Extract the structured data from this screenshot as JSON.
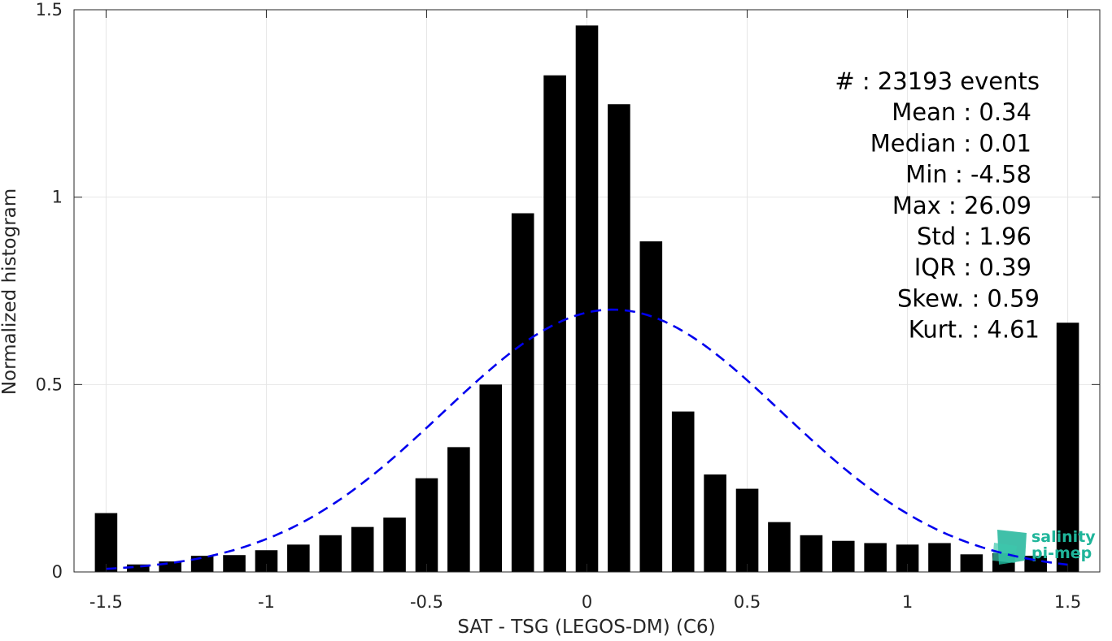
{
  "chart_data": {
    "type": "bar",
    "xlabel": "SAT - TSG (LEGOS-DM) (C6)",
    "ylabel": "Normalized histogram",
    "xlim": [
      -1.6,
      1.6
    ],
    "ylim": [
      0,
      1.5
    ],
    "xticks": [
      "-1.5",
      "-1",
      "-0.5",
      "0",
      "0.5",
      "1",
      "1.5"
    ],
    "xtick_values": [
      -1.5,
      -1,
      -0.5,
      0,
      0.5,
      1,
      1.5
    ],
    "yticks": [
      "0",
      "0.5",
      "1",
      "1.5"
    ],
    "ytick_values": [
      0,
      0.5,
      1,
      1.5
    ],
    "grid": true,
    "bar_color": "#000000",
    "bars": {
      "x": [
        -1.5,
        -1.4,
        -1.3,
        -1.2,
        -1.1,
        -1.0,
        -0.9,
        -0.8,
        -0.7,
        -0.6,
        -0.5,
        -0.4,
        -0.3,
        -0.2,
        -0.1,
        0.0,
        0.1,
        0.2,
        0.3,
        0.4,
        0.5,
        0.6,
        0.7,
        0.8,
        0.9,
        1.0,
        1.1,
        1.2,
        1.3,
        1.4,
        1.5
      ],
      "values": [
        0.157,
        0.02,
        0.028,
        0.043,
        0.045,
        0.058,
        0.073,
        0.098,
        0.12,
        0.145,
        0.25,
        0.333,
        0.5,
        0.957,
        1.325,
        1.458,
        1.248,
        0.882,
        0.428,
        0.26,
        0.222,
        0.133,
        0.098,
        0.083,
        0.077,
        0.073,
        0.077,
        0.047,
        0.05,
        0.043,
        0.665
      ]
    },
    "fit_curve": {
      "type": "normal",
      "style": "dashed",
      "color": "#0000ee",
      "x_range": [
        -1.5,
        1.5
      ],
      "mean": 0.08,
      "peak": 0.7,
      "sigma": 0.53
    },
    "stats": [
      {
        "label": "#  : 23193 events"
      },
      {
        "label": "Mean : 0.34"
      },
      {
        "label": "Median : 0.01"
      },
      {
        "label": "Min : -4.58"
      },
      {
        "label": "Max : 26.09"
      },
      {
        "label": "Std : 1.96"
      },
      {
        "label": "IQR : 0.39"
      },
      {
        "label": "Skew. : 0.59"
      },
      {
        "label": "Kurt. : 4.61"
      }
    ],
    "logo": {
      "line1": "salinity",
      "line2": "pi-mep",
      "color": "#1fb59a"
    }
  }
}
